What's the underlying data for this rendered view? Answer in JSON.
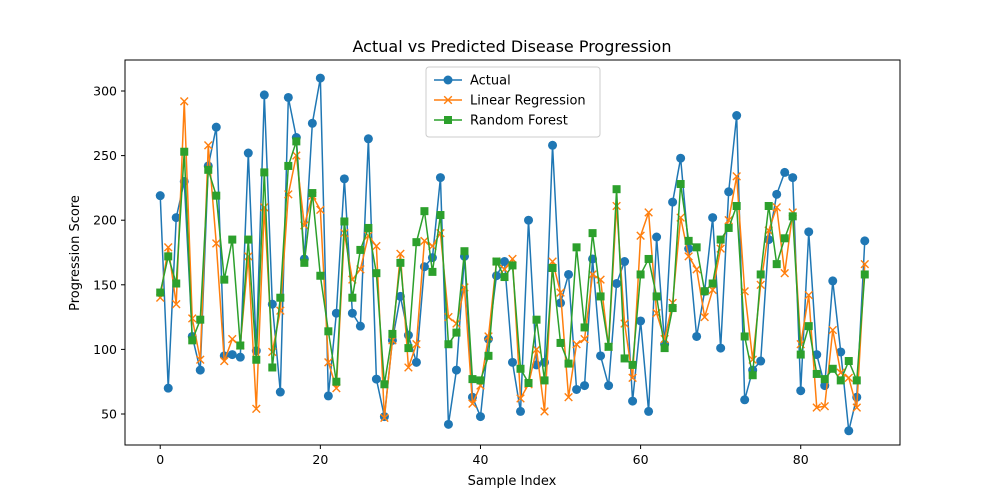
{
  "chart_data": {
    "type": "line",
    "title": "Actual vs Predicted Disease Progression",
    "xlabel": "Sample Index",
    "ylabel": "Progression Score",
    "xlim": [
      -4.4,
      92.4
    ],
    "ylim": [
      26,
      324
    ],
    "xticks": [
      0,
      20,
      40,
      60,
      80
    ],
    "yticks": [
      50,
      100,
      150,
      200,
      250,
      300
    ],
    "grid": false,
    "legend_position": "upper-center",
    "series": [
      {
        "name": "Actual",
        "color": "#1f77b4",
        "marker": "circle",
        "values": [
          219,
          70,
          202,
          230,
          110,
          84,
          242,
          272,
          95,
          96,
          94,
          252,
          99,
          297,
          135,
          67,
          295,
          264,
          170,
          275,
          310,
          64,
          128,
          232,
          128,
          118,
          263,
          77,
          48,
          107,
          141,
          111,
          90,
          164,
          171,
          233,
          42,
          84,
          172,
          63,
          48,
          108,
          157,
          168,
          90,
          52,
          200,
          88,
          90,
          258,
          136,
          158,
          69,
          72,
          170,
          95,
          72,
          151,
          168,
          60,
          122,
          52,
          187,
          104,
          214,
          248,
          178,
          110,
          145,
          202,
          101,
          222,
          281,
          61,
          84,
          91,
          185,
          220,
          237,
          233,
          68,
          191,
          96,
          72,
          153,
          98,
          37,
          63,
          184
        ]
      },
      {
        "name": "Linear Regression",
        "color": "#ff7f0e",
        "marker": "x",
        "values": [
          140,
          179,
          135,
          292,
          124,
          92,
          258,
          182,
          91,
          108,
          103,
          172,
          54,
          210,
          98,
          130,
          220,
          250,
          196,
          219,
          208,
          90,
          70,
          190,
          154,
          162,
          188,
          180,
          47,
          107,
          174,
          86,
          104,
          184,
          180,
          190,
          125,
          120,
          148,
          58,
          72,
          110,
          168,
          162,
          170,
          62,
          73,
          100,
          52,
          168,
          144,
          63,
          104,
          108,
          158,
          154,
          102,
          211,
          120,
          78,
          188,
          206,
          128,
          108,
          136,
          202,
          172,
          162,
          125,
          146,
          178,
          200,
          234,
          145,
          92,
          150,
          192,
          210,
          159,
          206,
          104,
          142,
          55,
          56,
          115,
          82,
          78,
          55,
          166
        ]
      },
      {
        "name": "Random Forest",
        "color": "#2ca02c",
        "marker": "square",
        "values": [
          144,
          172,
          151,
          253,
          107,
          123,
          239,
          219,
          154,
          185,
          103,
          185,
          92,
          237,
          86,
          140,
          242,
          261,
          167,
          221,
          157,
          114,
          75,
          199,
          140,
          177,
          194,
          159,
          73,
          112,
          167,
          101,
          183,
          207,
          160,
          204,
          104,
          113,
          176,
          77,
          76,
          95,
          168,
          156,
          165,
          85,
          74,
          123,
          76,
          163,
          105,
          89,
          179,
          117,
          190,
          141,
          102,
          224,
          93,
          88,
          158,
          170,
          141,
          101,
          132,
          228,
          184,
          179,
          145,
          151,
          185,
          194,
          211,
          110,
          80,
          158,
          211,
          166,
          186,
          203,
          96,
          118,
          81,
          77,
          85,
          76,
          91,
          76,
          158
        ]
      }
    ]
  }
}
